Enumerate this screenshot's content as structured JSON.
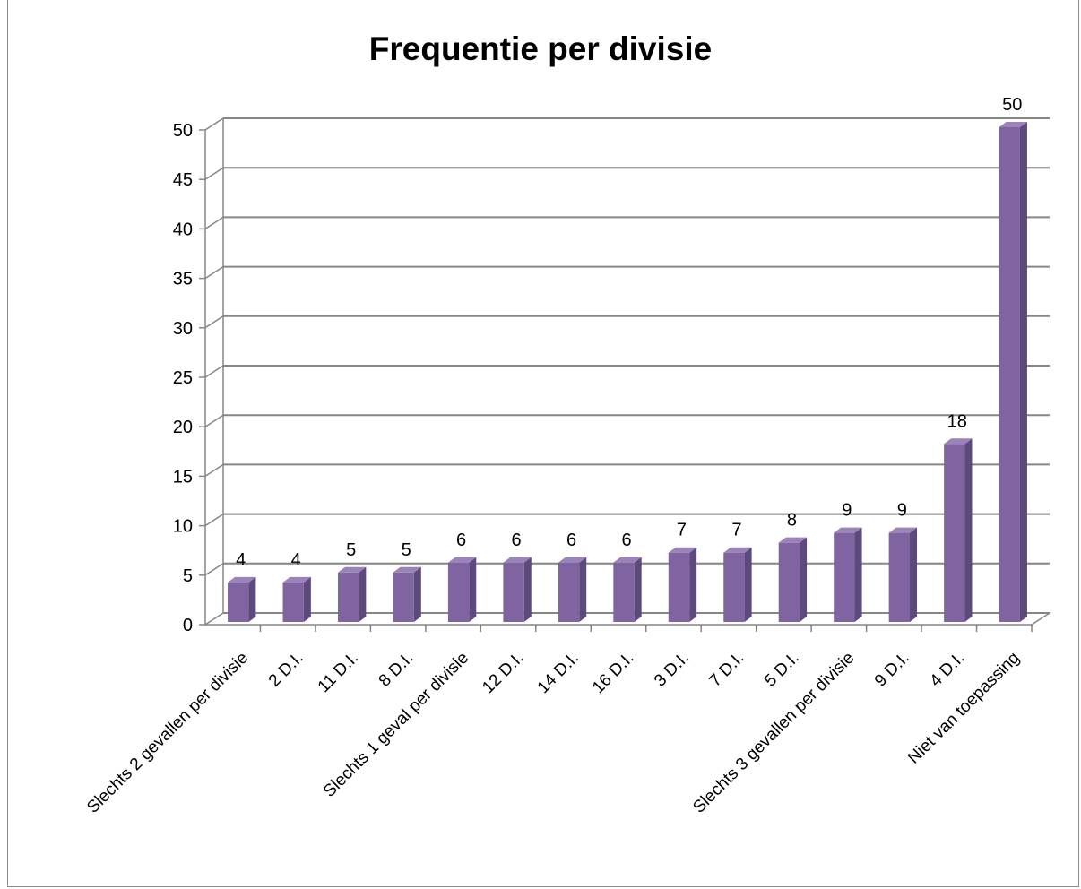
{
  "chart_data": {
    "type": "bar",
    "title": "Frequentie per divisie",
    "xlabel": "",
    "ylabel": "",
    "ylim": [
      0,
      50
    ],
    "yticks": [
      0,
      5,
      10,
      15,
      20,
      25,
      30,
      35,
      40,
      45,
      50
    ],
    "grid": true,
    "legend": "none",
    "three_d": true,
    "categories": [
      "Slechts 2 gevallen per divisie",
      "2 D.I.",
      "11 D.I.",
      "8 D.I.",
      "Slechts 1 geval per divisie",
      "12 D.I.",
      "14 D.I.",
      "16 D.I.",
      "3 D.I.",
      "7 D.I.",
      "5 D.I.",
      "Slechts 3 gevallen per divisie",
      "9 D.I.",
      "4 D.I.",
      "Niet van toepassing"
    ],
    "values": [
      4,
      4,
      5,
      5,
      6,
      6,
      6,
      6,
      7,
      7,
      8,
      9,
      9,
      18,
      50
    ],
    "colors": {
      "bar_front": "#8064A2",
      "bar_side": "#5C4A7A",
      "bar_top": "#9B82BA",
      "grid": "#868686"
    }
  }
}
